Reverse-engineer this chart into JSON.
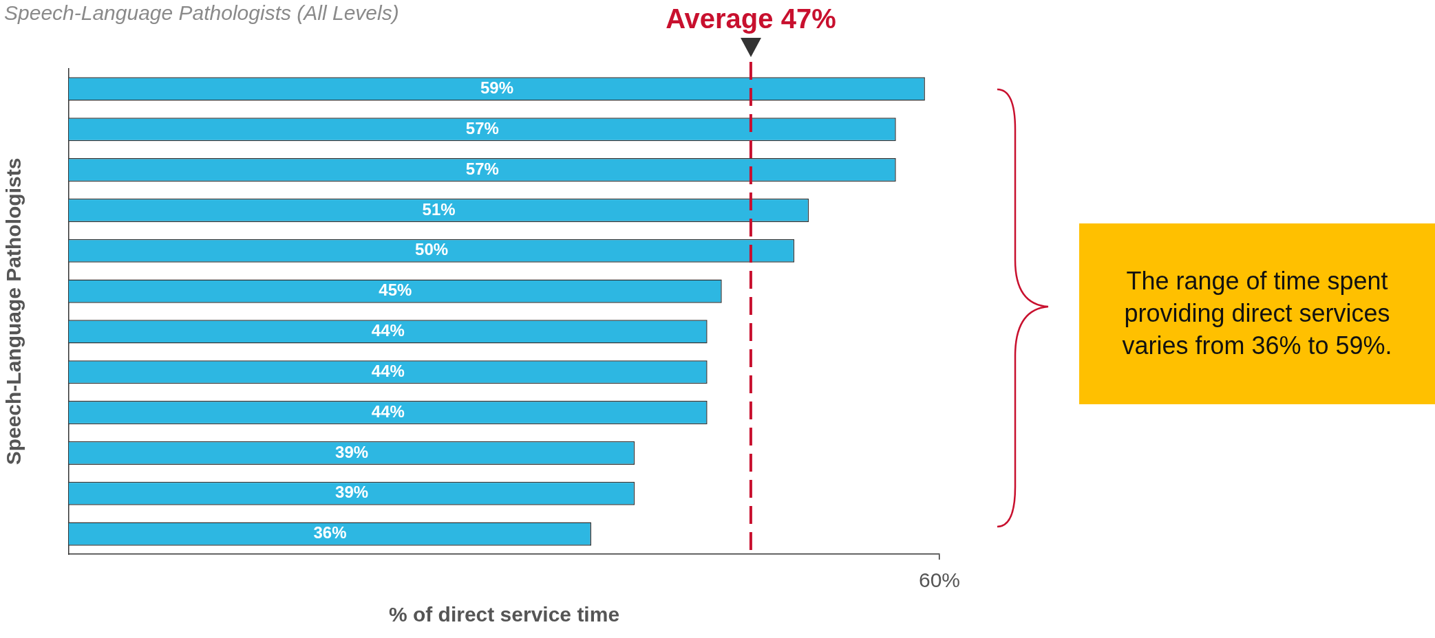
{
  "chart_data": {
    "type": "bar",
    "orientation": "horizontal",
    "title": "Speech-Language Pathologists (All Levels)",
    "xlabel": "% of direct service time",
    "ylabel": "Speech-Language Pathologists",
    "categories": [
      null,
      null,
      null,
      null,
      null,
      null,
      null,
      null,
      null,
      null,
      null,
      null
    ],
    "values": [
      59,
      57,
      57,
      51,
      50,
      45,
      44,
      44,
      44,
      39,
      39,
      36
    ],
    "value_labels": [
      "59%",
      "57%",
      "57%",
      "51%",
      "50%",
      "45%",
      "44%",
      "44%",
      "44%",
      "39%",
      "39%",
      "36%"
    ],
    "color": "#2db7e2",
    "xlim": [
      0,
      60
    ],
    "xticks": [
      {
        "value": 60,
        "label": "60%"
      }
    ],
    "grid": false,
    "legend": false,
    "tick_labels": "x",
    "ref_lines": [
      {
        "axis": "x",
        "value": 47,
        "label": "Average 47%",
        "color": "#c8102e",
        "line_style": "dashed"
      }
    ],
    "annotations": [
      "The range of time spent providing direct services varies from 36% to 59%."
    ]
  }
}
